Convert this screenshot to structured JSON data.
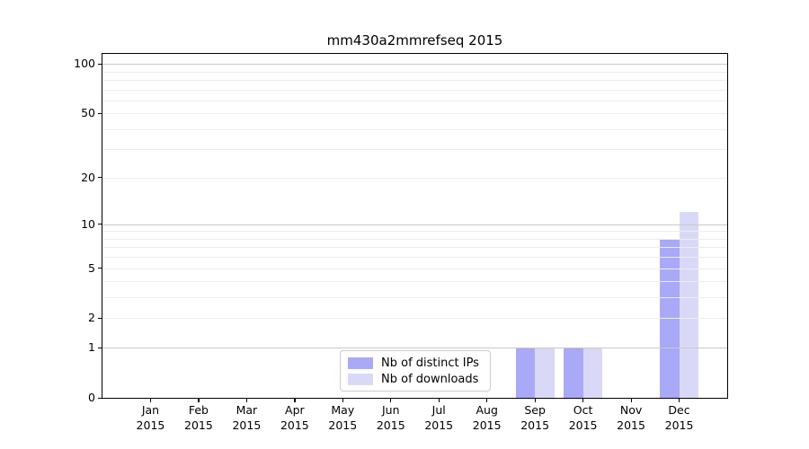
{
  "chart_data": {
    "type": "bar",
    "title": "mm430a2mmrefseq 2015",
    "categories": [
      "Jan",
      "Feb",
      "Mar",
      "Apr",
      "May",
      "Jun",
      "Jul",
      "Aug",
      "Sep",
      "Oct",
      "Nov",
      "Dec"
    ],
    "category_year": "2015",
    "series": [
      {
        "name": "Nb of distinct IPs",
        "color": "#a9a9f7",
        "values": [
          0,
          0,
          0,
          0,
          0,
          0,
          0,
          0,
          1,
          1,
          0,
          8
        ]
      },
      {
        "name": "Nb of downloads",
        "color": "#d9d9f7",
        "values": [
          0,
          0,
          0,
          0,
          0,
          0,
          0,
          0,
          1,
          1,
          0,
          12
        ]
      }
    ],
    "y_scale": "log1p",
    "ylim": [
      0,
      115
    ],
    "y_ticks": [
      0,
      1,
      2,
      5,
      10,
      20,
      50,
      100
    ],
    "major_gridlines": [
      1,
      10,
      100
    ],
    "minor_gridlines": [
      2,
      3,
      4,
      5,
      6,
      7,
      8,
      9,
      20,
      30,
      40,
      50,
      60,
      70,
      80,
      90
    ],
    "grid_color_major": "#c9c9c9",
    "grid_color_minor": "#ededed",
    "legend_position": "lower center"
  }
}
